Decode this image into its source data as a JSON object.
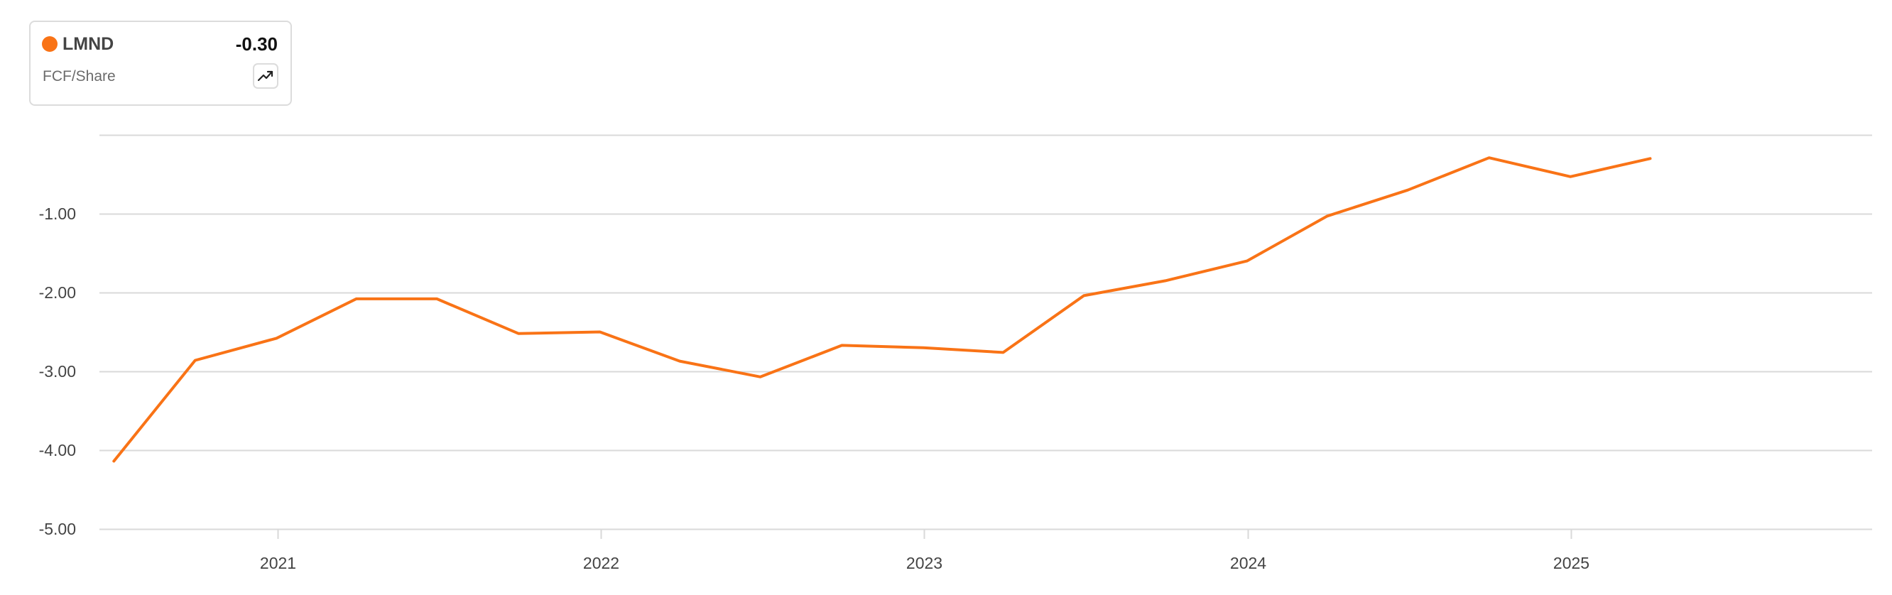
{
  "legend": {
    "ticker": "LMND",
    "value": "-0.30",
    "metric": "FCF/Share",
    "trend_icon": "trending-up-icon"
  },
  "colors": {
    "series": "#f97316",
    "grid": "#d9d9d9",
    "axis_text": "#444444"
  },
  "chart_data": {
    "type": "line",
    "title": "",
    "xlabel": "",
    "ylabel": "",
    "ylim": [
      -5,
      0
    ],
    "y_ticks": [
      {
        "value": -1,
        "label": "-1.00"
      },
      {
        "value": -2,
        "label": "-2.00"
      },
      {
        "value": -3,
        "label": "-3.00"
      },
      {
        "value": -4,
        "label": "-4.00"
      },
      {
        "value": -5,
        "label": "-5.00"
      }
    ],
    "x_range": [
      2020.45,
      2025.93
    ],
    "x_ticks": [
      {
        "value": 2021.0,
        "label": "2021"
      },
      {
        "value": 2022.0,
        "label": "2022"
      },
      {
        "value": 2023.0,
        "label": "2023"
      },
      {
        "value": 2024.0,
        "label": "2024"
      },
      {
        "value": 2025.0,
        "label": "2025"
      }
    ],
    "grid": true,
    "legend_position": "top-left",
    "series": [
      {
        "name": "LMND",
        "points": [
          {
            "x": "2020-06-30",
            "y": -4.14
          },
          {
            "x": "2020-09-30",
            "y": -2.86
          },
          {
            "x": "2020-12-31",
            "y": -2.58
          },
          {
            "x": "2021-03-31",
            "y": -2.08
          },
          {
            "x": "2021-06-30",
            "y": -2.08
          },
          {
            "x": "2021-09-30",
            "y": -2.52
          },
          {
            "x": "2021-12-31",
            "y": -2.5
          },
          {
            "x": "2022-03-31",
            "y": -2.87
          },
          {
            "x": "2022-06-30",
            "y": -3.07
          },
          {
            "x": "2022-09-30",
            "y": -2.67
          },
          {
            "x": "2022-12-31",
            "y": -2.7
          },
          {
            "x": "2023-03-31",
            "y": -2.76
          },
          {
            "x": "2023-06-30",
            "y": -2.04
          },
          {
            "x": "2023-09-30",
            "y": -1.85
          },
          {
            "x": "2023-12-31",
            "y": -1.6
          },
          {
            "x": "2024-03-31",
            "y": -1.03
          },
          {
            "x": "2024-06-30",
            "y": -0.7
          },
          {
            "x": "2024-09-30",
            "y": -0.29
          },
          {
            "x": "2024-12-31",
            "y": -0.53
          },
          {
            "x": "2025-03-31",
            "y": -0.3
          }
        ]
      }
    ]
  }
}
